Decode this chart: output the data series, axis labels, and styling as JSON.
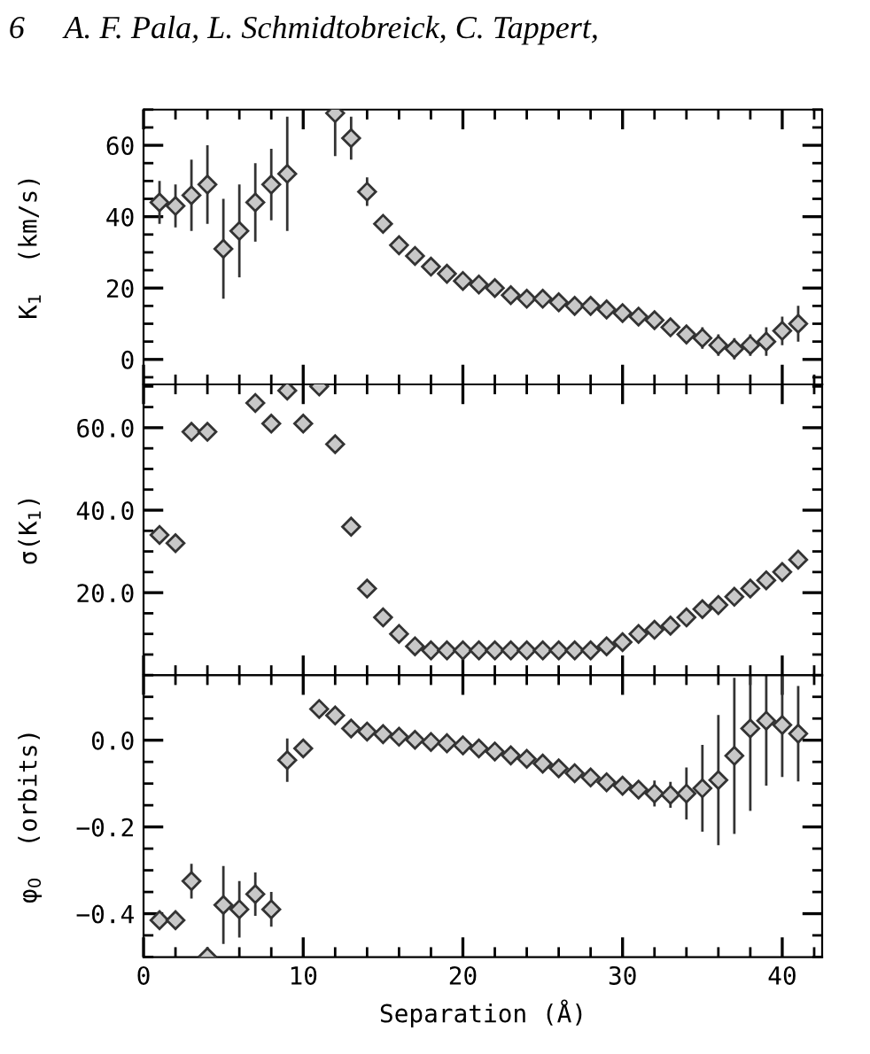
{
  "chart_data": [
    {
      "type": "scatter",
      "title": null,
      "annotations": [
        "6     A. F. Pala, L. Schmidtobreick, C. Tappert,"
      ],
      "ylabel": "K$_{1}$  (km/s)",
      "marker": "diamond",
      "legend": false,
      "grid": false,
      "tick_labels": "y",
      "x": [
        1,
        2,
        3,
        4,
        5,
        6,
        7,
        8,
        9,
        12,
        13,
        14,
        15,
        16,
        17,
        18,
        19,
        20,
        21,
        22,
        23,
        24,
        25,
        26,
        27,
        28,
        29,
        30,
        31,
        32,
        33,
        34,
        35,
        36,
        37,
        38,
        39,
        40,
        41
      ],
      "series": [
        {
          "color": "#333333",
          "values": [
            44,
            43,
            46,
            49,
            31,
            36,
            44,
            49,
            52,
            69,
            62,
            47,
            38,
            32,
            29,
            26,
            24,
            22,
            21,
            20,
            18,
            17,
            17,
            16,
            15,
            15,
            14,
            13,
            12,
            11,
            9,
            7,
            6,
            4,
            3,
            4,
            5,
            8,
            10
          ],
          "errors": [
            6,
            6,
            10,
            11,
            14,
            13,
            11,
            10,
            16,
            12,
            6,
            4,
            1,
            1,
            1,
            1,
            1,
            1,
            1,
            1,
            1,
            1,
            1,
            1,
            1,
            1,
            1,
            1,
            1,
            1,
            1,
            1,
            3,
            3,
            3,
            3,
            4,
            4,
            5
          ]
        }
      ],
      "xlim": [
        0,
        42.5
      ],
      "xticks": [
        0,
        10,
        20,
        30,
        40
      ],
      "ylim": [
        -7,
        70
      ],
      "yticks": [
        0,
        20,
        40,
        60
      ]
    },
    {
      "type": "scatter",
      "ylabel": "σ(K$_{1}$)",
      "marker": "diamond",
      "legend": false,
      "grid": false,
      "tick_labels": "y",
      "x": [
        1,
        2,
        3,
        4,
        7,
        8,
        9,
        10,
        11,
        12,
        13,
        14,
        15,
        16,
        17,
        18,
        19,
        20,
        21,
        22,
        23,
        24,
        25,
        26,
        27,
        28,
        29,
        30,
        31,
        32,
        33,
        34,
        35,
        36,
        37,
        38,
        39,
        40,
        41
      ],
      "series": [
        {
          "color": "#333333",
          "values": [
            34,
            32,
            59,
            59,
            66,
            61,
            69,
            61,
            70,
            56,
            36,
            21,
            14,
            10,
            7,
            6,
            6,
            6,
            6,
            6,
            6,
            6,
            6,
            6,
            6,
            6,
            7,
            8,
            10,
            11,
            12,
            14,
            16,
            17,
            19,
            21,
            23,
            25,
            28
          ]
        }
      ],
      "xlim": [
        0,
        42.5
      ],
      "xticks": [
        0,
        10,
        20,
        30,
        40
      ],
      "ylim": [
        0,
        70.5
      ],
      "yticks": [
        {
          "value": 20,
          "label": "20.0"
        },
        {
          "value": 40,
          "label": "40.0"
        },
        {
          "value": 60,
          "label": "60.0"
        }
      ]
    },
    {
      "type": "scatter",
      "ylabel": "φ$_{0}$  (orbits)",
      "xlabel": "Separation (Å)",
      "marker": "diamond",
      "legend": false,
      "grid": false,
      "x": [
        1,
        2,
        3,
        4,
        5,
        6,
        7,
        8,
        9,
        10,
        11,
        12,
        13,
        14,
        15,
        16,
        17,
        18,
        19,
        20,
        21,
        22,
        23,
        24,
        25,
        26,
        27,
        28,
        29,
        30,
        31,
        32,
        33,
        34,
        35,
        36,
        37,
        38,
        39,
        40,
        41
      ],
      "series": [
        {
          "color": "#333333",
          "values": [
            -0.415,
            -0.415,
            -0.325,
            -0.5,
            -0.38,
            -0.39,
            -0.355,
            -0.39,
            -0.046,
            -0.019,
            0.072,
            0.057,
            0.027,
            0.02,
            0.014,
            0.008,
            0.001,
            -0.004,
            -0.007,
            -0.012,
            -0.019,
            -0.026,
            -0.035,
            -0.043,
            -0.054,
            -0.065,
            -0.076,
            -0.086,
            -0.097,
            -0.105,
            -0.114,
            -0.123,
            -0.126,
            -0.123,
            -0.111,
            -0.092,
            -0.036,
            0.027,
            0.045,
            0.035,
            0.015
          ],
          "errors": [
            0.02,
            0.02,
            0.04,
            null,
            0.09,
            0.065,
            0.05,
            0.04,
            0.05,
            0.015,
            0.02,
            0.02,
            0.01,
            0.01,
            0.01,
            0.01,
            0.01,
            0.01,
            0.01,
            0.01,
            0.01,
            0.01,
            0.01,
            0.01,
            0.01,
            0.01,
            0.01,
            0.01,
            0.01,
            0.01,
            0.02,
            0.03,
            0.03,
            0.06,
            0.1,
            0.15,
            0.18,
            0.19,
            0.15,
            0.12,
            0.11
          ]
        }
      ],
      "xlim": [
        0,
        42.5
      ],
      "xticks": [
        0,
        10,
        20,
        30,
        40
      ],
      "ylim": [
        -0.5,
        0.15
      ],
      "yticks": [
        {
          "value": -0.4,
          "label": "−0.4"
        },
        {
          "value": -0.2,
          "label": "−0.2"
        },
        {
          "value": 0,
          "label": "0.0"
        }
      ]
    }
  ]
}
